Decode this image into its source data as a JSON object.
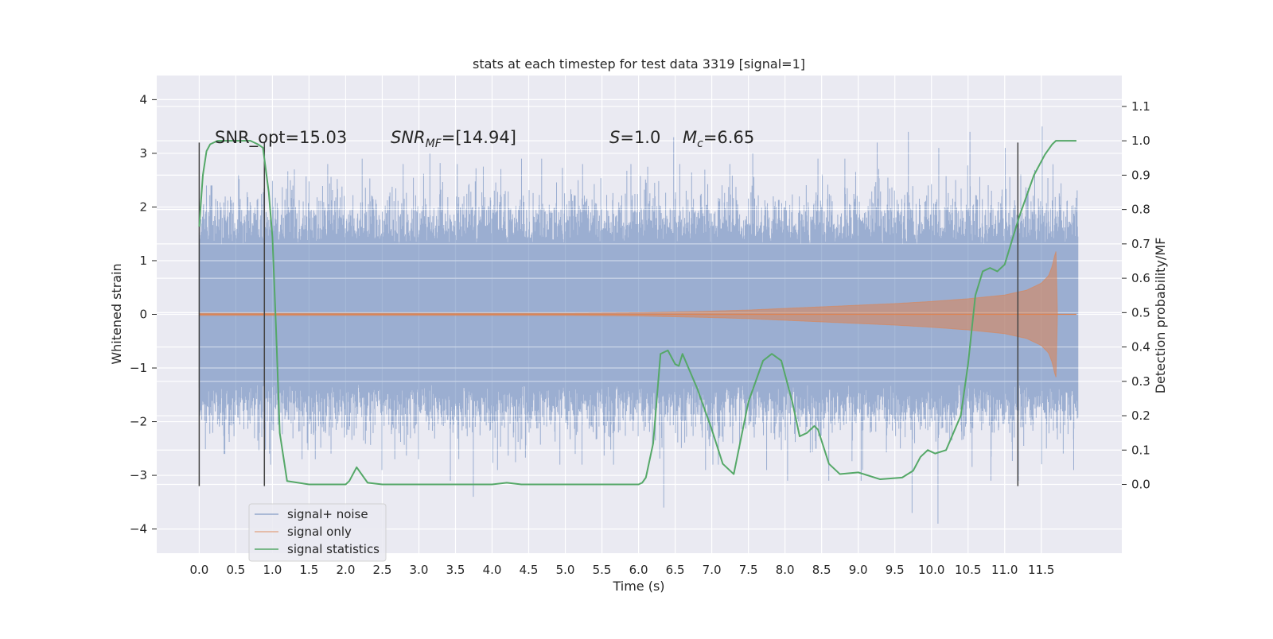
{
  "chart_data": {
    "type": "line",
    "title": "stats at each timestep for test data 3319 [signal=1]",
    "xlabel": "Time (s)",
    "ylabel_left": "Whitened strain",
    "ylabel_right": "Detection probability/MF",
    "xlim": [
      -0.58,
      12.6
    ],
    "ylim_left": [
      -4.45,
      4.45
    ],
    "ylim_right": [
      -0.2,
      1.19
    ],
    "xticks": [
      "0.0",
      "0.5",
      "1.0",
      "1.5",
      "2.0",
      "2.5",
      "3.0",
      "3.5",
      "4.0",
      "4.5",
      "5.0",
      "5.5",
      "6.0",
      "6.5",
      "7.0",
      "7.5",
      "8.0",
      "8.5",
      "9.0",
      "9.5",
      "10.0",
      "10.5",
      "11.0",
      "11.5"
    ],
    "yticks_left": [
      "4",
      "3",
      "2",
      "1",
      "0",
      "−1",
      "−2",
      "−3",
      "−4"
    ],
    "yticks_right": [
      "1.1",
      "1.0",
      "0.9",
      "0.8",
      "0.7",
      "0.6",
      "0.5",
      "0.4",
      "0.3",
      "0.2",
      "0.1",
      "0.0"
    ],
    "grid": true,
    "legend_position": "lower-left",
    "annotations": {
      "snr_opt": "SNR_opt=15.03",
      "snr_mf_name": "SNR",
      "snr_mf_sub": "MF",
      "snr_mf_value": "=[14.94]",
      "s_name": "S",
      "s_value": "=1.0",
      "mc_name": "M",
      "mc_sub": "c",
      "mc_value": "=6.65"
    },
    "series": [
      {
        "name": "signal+ noise",
        "color": "#4c72b0",
        "axis": "left",
        "t_start": 0.0,
        "t_end": 12.0,
        "typical_amplitude": 1.3,
        "band_max": [
          2.4,
          2.6,
          2.7,
          2.8,
          2.9,
          2.8,
          3.0,
          2.8,
          2.9,
          2.9,
          2.8,
          2.8,
          3.3,
          2.8,
          2.8,
          3.0,
          2.9,
          2.9,
          3.2,
          3.4,
          3.1,
          3.4,
          3.1,
          3.5
        ],
        "band_min": [
          -2.6,
          -2.8,
          -2.7,
          -2.7,
          -2.9,
          -2.7,
          -3.1,
          -3.4,
          -2.9,
          -2.8,
          -2.8,
          -2.8,
          -3.6,
          -2.9,
          -2.8,
          -2.9,
          -3.1,
          -3.1,
          -3.1,
          -3.7,
          -3.9,
          -3.1,
          -3.1,
          -2.9
        ]
      },
      {
        "name": "signal only",
        "color": "#dd8452",
        "axis": "left",
        "x": [
          0.0,
          1.0,
          2.0,
          3.0,
          4.0,
          5.0,
          6.0,
          7.0,
          7.5,
          8.0,
          8.5,
          9.0,
          9.5,
          10.0,
          10.5,
          11.0,
          11.3,
          11.5,
          11.6,
          11.65,
          11.7,
          11.72
        ],
        "envelope": [
          0.02,
          0.02,
          0.02,
          0.02,
          0.02,
          0.02,
          0.03,
          0.06,
          0.08,
          0.11,
          0.14,
          0.17,
          0.2,
          0.24,
          0.29,
          0.36,
          0.45,
          0.58,
          0.72,
          0.9,
          1.2,
          0.0
        ]
      },
      {
        "name": "signal statistics",
        "color": "#55a868",
        "axis": "right",
        "x": [
          0.0,
          0.05,
          0.1,
          0.15,
          0.25,
          0.35,
          0.5,
          0.7,
          0.8,
          0.87,
          0.95,
          1.0,
          1.05,
          1.1,
          1.2,
          1.5,
          2.0,
          2.05,
          2.1,
          2.15,
          2.3,
          2.5,
          3.0,
          3.5,
          4.0,
          4.2,
          4.4,
          5.0,
          6.0,
          6.05,
          6.1,
          6.2,
          6.3,
          6.4,
          6.5,
          6.55,
          6.6,
          6.8,
          7.0,
          7.15,
          7.3,
          7.5,
          7.7,
          7.82,
          7.95,
          8.1,
          8.2,
          8.3,
          8.4,
          8.45,
          8.6,
          8.75,
          9.0,
          9.3,
          9.6,
          9.75,
          9.85,
          9.95,
          10.05,
          10.2,
          10.4,
          10.5,
          10.6,
          10.7,
          10.8,
          10.9,
          11.0,
          11.2,
          11.4,
          11.55,
          11.65,
          11.7,
          11.98
        ],
        "y": [
          0.75,
          0.9,
          0.97,
          0.99,
          1.0,
          1.0,
          1.0,
          1.0,
          0.99,
          0.98,
          0.85,
          0.72,
          0.45,
          0.15,
          0.01,
          0.0,
          0.0,
          0.01,
          0.03,
          0.05,
          0.005,
          0.0,
          0.0,
          0.0,
          0.0,
          0.005,
          0.0,
          0.0,
          0.0,
          0.005,
          0.02,
          0.12,
          0.38,
          0.39,
          0.35,
          0.345,
          0.38,
          0.28,
          0.16,
          0.06,
          0.03,
          0.24,
          0.36,
          0.38,
          0.36,
          0.24,
          0.14,
          0.15,
          0.17,
          0.16,
          0.06,
          0.03,
          0.035,
          0.015,
          0.02,
          0.04,
          0.08,
          0.1,
          0.09,
          0.1,
          0.2,
          0.35,
          0.55,
          0.62,
          0.63,
          0.62,
          0.64,
          0.78,
          0.9,
          0.96,
          0.99,
          1.0,
          1.0
        ]
      }
    ],
    "vlines": [
      0.0,
      0.89,
      11.18
    ],
    "vline_range_left": [
      -3.2,
      3.2
    ]
  }
}
